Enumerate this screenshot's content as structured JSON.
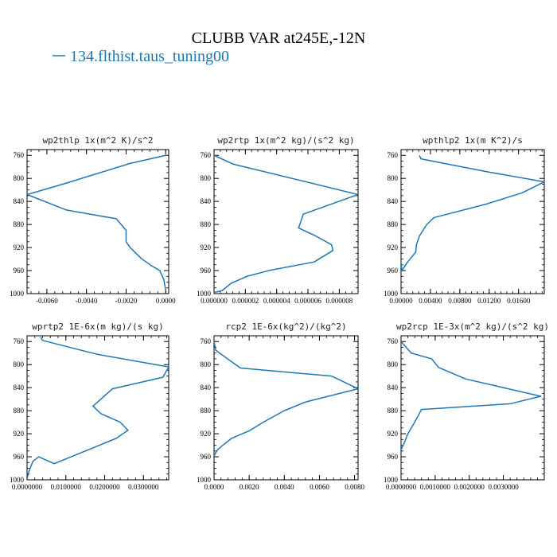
{
  "figure": {
    "title": "CLUBB VAR at245E,-12N",
    "legend_label": "134.flthist.taus_tuning00",
    "series_color": "#1f77b4"
  },
  "chart_data": [
    {
      "type": "line",
      "title": "wp2thlp  1x(m^2 K)/s^2",
      "xlim": [
        -0.007,
        0.00015
      ],
      "ylim": [
        1000,
        750
      ],
      "y_inverted": true,
      "xticks": [
        -0.006,
        -0.004,
        -0.002,
        0.0
      ],
      "xtick_labels": [
        "-0.0060",
        "-0.0040",
        "-0.0020",
        "0.0000"
      ],
      "yticks": [
        760,
        800,
        840,
        880,
        920,
        960,
        1000
      ],
      "ytick_labels": [
        "760",
        "800",
        "840",
        "880",
        "920",
        "960",
        "1000"
      ],
      "series": [
        {
          "x": [
            0.0,
            -0.0018,
            -0.005,
            -0.007,
            -0.005,
            -0.0025,
            -0.002,
            -0.002,
            -0.0018,
            -0.0012,
            -0.0007,
            -0.0003,
            -0.0001,
            0.0
          ],
          "y": [
            760,
            774,
            808,
            828,
            855,
            870,
            890,
            910,
            920,
            940,
            952,
            960,
            975,
            995
          ]
        }
      ]
    },
    {
      "type": "line",
      "title": "wp2rtp  1x(m^2 kg)/(s^2 kg)",
      "xlim": [
        0.0,
        9.2e-06
      ],
      "ylim": [
        1000,
        750
      ],
      "y_inverted": true,
      "xticks": [
        0.0,
        2e-06,
        4e-06,
        6e-06,
        8e-06
      ],
      "xtick_labels": [
        "0.000000",
        "0.000002",
        "0.000004",
        "0.000006",
        "0.000008"
      ],
      "yticks": [
        760,
        800,
        840,
        880,
        920,
        960,
        1000
      ],
      "ytick_labels": [
        "760",
        "800",
        "840",
        "880",
        "920",
        "960",
        "1000"
      ],
      "series": [
        {
          "x": [
            0.0,
            1.2e-06,
            9.2e-06,
            5.7e-06,
            5.4e-06,
            6.5e-06,
            7.5e-06,
            7.6e-06,
            6.4e-06,
            3.5e-06,
            2.1e-06,
            1.1e-06,
            5e-07,
            0.0
          ],
          "y": [
            760,
            775,
            828,
            862,
            886,
            900,
            915,
            925,
            945,
            960,
            970,
            982,
            995,
            998
          ]
        }
      ]
    },
    {
      "type": "line",
      "title": "wpthlp2  1x(m K^2)/s",
      "xlim": [
        0.0,
        0.0195
      ],
      "ylim": [
        1000,
        750
      ],
      "y_inverted": true,
      "xticks": [
        0.0,
        0.004,
        0.008,
        0.012,
        0.016
      ],
      "xtick_labels": [
        "0.00000",
        "0.00400",
        "0.00800",
        "0.01200",
        "0.01600"
      ],
      "yticks": [
        760,
        800,
        840,
        880,
        920,
        960,
        1000
      ],
      "ytick_labels": [
        "760",
        "800",
        "840",
        "880",
        "920",
        "960",
        "1000"
      ],
      "series": [
        {
          "x": [
            0.0,
            0.0001,
            0.0001,
            0.0009,
            0.002,
            0.0021,
            0.0025,
            0.0035,
            0.0045,
            0.0115,
            0.0165,
            0.0195,
            0.0115,
            0.0027,
            0.0025
          ],
          "y": [
            945,
            958,
            960,
            945,
            928,
            915,
            900,
            880,
            868,
            845,
            825,
            806,
            788,
            766,
            760
          ]
        }
      ]
    },
    {
      "type": "line",
      "title": "wprtp2  1E-6x(m kg)/(s kg)",
      "xlim": [
        0.0,
        0.0365
      ],
      "ylim": [
        1000,
        750
      ],
      "y_inverted": true,
      "xticks": [
        0.0,
        0.01,
        0.02,
        0.03
      ],
      "xtick_labels": [
        "0.0000000",
        "0.0100000",
        "0.0200000",
        "0.0300000"
      ],
      "yticks": [
        760,
        800,
        840,
        880,
        920,
        960,
        1000
      ],
      "ytick_labels": [
        "760",
        "800",
        "840",
        "880",
        "920",
        "960",
        "1000"
      ],
      "series": [
        {
          "x": [
            0.0035,
            0.004,
            0.018,
            0.0365,
            0.035,
            0.022,
            0.017,
            0.019,
            0.024,
            0.026,
            0.023,
            0.007,
            0.003,
            0.0015,
            0.0005,
            0.0
          ],
          "y": [
            752,
            758,
            782,
            804,
            822,
            842,
            872,
            885,
            900,
            914,
            928,
            972,
            960,
            968,
            985,
            998
          ]
        }
      ]
    },
    {
      "type": "line",
      "title": "rcp2  1E-6x(kg^2)/(kg^2)",
      "xlim": [
        0.0,
        0.0082
      ],
      "ylim": [
        1000,
        750
      ],
      "y_inverted": true,
      "xticks": [
        0.0,
        0.002,
        0.004,
        0.006,
        0.008
      ],
      "xtick_labels": [
        "0.0000",
        "0.0020",
        "0.0040",
        "0.0060",
        "0.0080"
      ],
      "yticks": [
        760,
        800,
        840,
        880,
        920,
        960,
        1000
      ],
      "ytick_labels": [
        "760",
        "800",
        "840",
        "880",
        "920",
        "960",
        "1000"
      ],
      "series": [
        {
          "x": [
            0.0,
            0.0001,
            0.0004,
            0.0015,
            0.0067,
            0.0082,
            0.0052,
            0.004,
            0.0028,
            0.002,
            0.001,
            0.0005,
            0.0002,
            0.0
          ],
          "y": [
            760,
            775,
            782,
            806,
            820,
            842,
            865,
            880,
            900,
            915,
            928,
            940,
            948,
            958
          ]
        }
      ]
    },
    {
      "type": "line",
      "title": "wp2rcp  1E-3x(m^2 kg)/(s^2 kg)",
      "xlim": [
        0.0,
        0.0042
      ],
      "ylim": [
        1000,
        750
      ],
      "y_inverted": true,
      "xticks": [
        0.0,
        0.001,
        0.002,
        0.003
      ],
      "xtick_labels": [
        "0.0000000",
        "0.0010000",
        "0.0020000",
        "0.0030000"
      ],
      "yticks": [
        760,
        800,
        840,
        880,
        920,
        960,
        1000
      ],
      "ytick_labels": [
        "760",
        "800",
        "840",
        "880",
        "920",
        "960",
        "1000"
      ],
      "series": [
        {
          "x": [
            0.0,
            0.0003,
            0.0009,
            0.0011,
            0.0019,
            0.0041,
            0.0032,
            0.0006,
            0.0004,
            0.0002,
            0.0001,
            0.0
          ],
          "y": [
            760,
            780,
            790,
            805,
            825,
            855,
            868,
            878,
            900,
            920,
            935,
            948
          ]
        }
      ]
    }
  ]
}
